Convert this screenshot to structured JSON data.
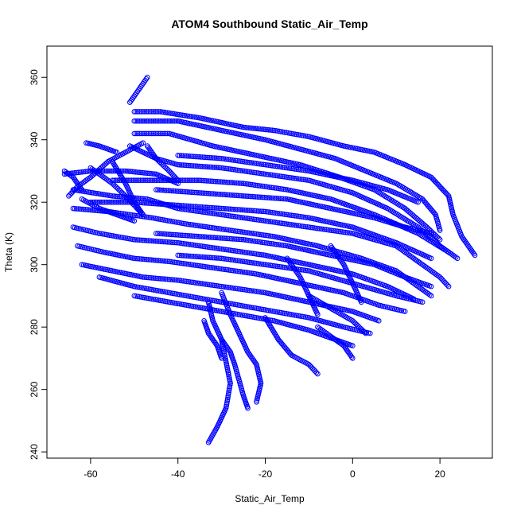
{
  "chart_data": {
    "type": "scatter",
    "title": "ATOM4 Southbound Static_Air_Temp",
    "xlabel": "Static_Air_Temp",
    "ylabel": "Theta (K)",
    "xlim": [
      -70,
      32
    ],
    "ylim": [
      238,
      370
    ],
    "xticks": [
      -60,
      -40,
      -20,
      0,
      20
    ],
    "yticks": [
      240,
      260,
      280,
      300,
      320,
      340,
      360
    ],
    "color": "#0000ff",
    "marker": "open-circle",
    "grid": false,
    "series": [
      {
        "segments": [
          [
            [
              -47,
              360
            ],
            [
              -48,
              358
            ],
            [
              -49,
              356
            ],
            [
              -50,
              354
            ],
            [
              -51,
              352
            ]
          ],
          [
            [
              -50,
              349
            ],
            [
              -44,
              349
            ],
            [
              -35,
              347
            ],
            [
              -25,
              344
            ],
            [
              -18,
              343
            ],
            [
              -10,
              341
            ],
            [
              -2,
              338
            ],
            [
              5,
              336
            ],
            [
              12,
              332
            ],
            [
              18,
              328
            ],
            [
              22,
              322
            ],
            [
              23,
              316
            ],
            [
              25,
              309
            ],
            [
              28,
              303
            ]
          ],
          [
            [
              -50,
              346
            ],
            [
              -40,
              346
            ],
            [
              -30,
              343
            ],
            [
              -20,
              340
            ],
            [
              -12,
              337
            ],
            [
              -4,
              334
            ],
            [
              3,
              330
            ],
            [
              10,
              326
            ],
            [
              16,
              321
            ],
            [
              19,
              316
            ],
            [
              20,
              311
            ]
          ],
          [
            [
              -50,
              342
            ],
            [
              -42,
              342
            ],
            [
              -32,
              338
            ],
            [
              -22,
              335
            ],
            [
              -12,
              332
            ],
            [
              -3,
              328
            ],
            [
              5,
              324
            ],
            [
              12,
              318
            ],
            [
              17,
              312
            ],
            [
              20,
              308
            ]
          ],
          [
            [
              -51,
              338
            ],
            [
              -45,
              334
            ],
            [
              -40,
              332
            ],
            [
              -30,
              331
            ],
            [
              -20,
              329
            ],
            [
              -10,
              327
            ],
            [
              0,
              323
            ],
            [
              8,
              318
            ],
            [
              15,
              312
            ],
            [
              20,
              306
            ],
            [
              24,
              302
            ]
          ],
          [
            [
              -66,
              329
            ],
            [
              -60,
              330
            ],
            [
              -52,
              330
            ],
            [
              -45,
              329
            ],
            [
              -40,
              326
            ]
          ],
          [
            [
              -64,
              324
            ],
            [
              -55,
              322
            ],
            [
              -47,
              321
            ],
            [
              -40,
              318
            ],
            [
              -30,
              316
            ],
            [
              -20,
              314
            ],
            [
              -10,
              312
            ],
            [
              0,
              310
            ],
            [
              10,
              306
            ],
            [
              16,
              300
            ],
            [
              20,
              296
            ],
            [
              22,
              293
            ]
          ],
          [
            [
              -64,
              318
            ],
            [
              -56,
              317
            ],
            [
              -46,
              315
            ],
            [
              -38,
              313
            ],
            [
              -28,
              311
            ],
            [
              -18,
              309
            ],
            [
              -8,
              306
            ],
            [
              2,
              302
            ],
            [
              10,
              298
            ],
            [
              15,
              293
            ],
            [
              18,
              290
            ]
          ],
          [
            [
              -64,
              312
            ],
            [
              -58,
              310
            ],
            [
              -50,
              308
            ],
            [
              -40,
              307
            ],
            [
              -30,
              305
            ],
            [
              -20,
              303
            ],
            [
              -10,
              300
            ],
            [
              0,
              297
            ],
            [
              8,
              293
            ],
            [
              14,
              289
            ]
          ],
          [
            [
              -63,
              306
            ],
            [
              -57,
              304
            ],
            [
              -50,
              302
            ],
            [
              -42,
              301
            ],
            [
              -32,
              299
            ],
            [
              -22,
              297
            ],
            [
              -12,
              294
            ],
            [
              -2,
              291
            ],
            [
              6,
              287
            ],
            [
              12,
              285
            ]
          ],
          [
            [
              -62,
              300
            ],
            [
              -55,
              298
            ],
            [
              -48,
              296
            ],
            [
              -40,
              295
            ],
            [
              -30,
              293
            ],
            [
              -20,
              291
            ],
            [
              -10,
              288
            ],
            [
              0,
              285
            ],
            [
              6,
              282
            ]
          ],
          [
            [
              -58,
              296
            ],
            [
              -50,
              293
            ],
            [
              -42,
              291
            ],
            [
              -34,
              289
            ],
            [
              -26,
              287
            ],
            [
              -18,
              285
            ],
            [
              -10,
              283
            ],
            [
              -2,
              280
            ],
            [
              4,
              278
            ]
          ],
          [
            [
              -50,
              290
            ],
            [
              -42,
              288
            ],
            [
              -34,
              286
            ],
            [
              -26,
              284
            ],
            [
              -18,
              282
            ],
            [
              -10,
              279
            ],
            [
              -4,
              276
            ],
            [
              0,
              274
            ]
          ],
          [
            [
              -30,
              291
            ],
            [
              -28,
              284
            ],
            [
              -26,
              278
            ],
            [
              -24,
              272
            ],
            [
              -22,
              268
            ],
            [
              -21,
              262
            ],
            [
              -22,
              256
            ]
          ],
          [
            [
              -33,
              288
            ],
            [
              -32,
              282
            ],
            [
              -30,
              276
            ],
            [
              -28,
              272
            ],
            [
              -27,
              268
            ],
            [
              -26,
              263
            ],
            [
              -25,
              258
            ],
            [
              -24,
              254
            ]
          ],
          [
            [
              -34,
              282
            ],
            [
              -33,
              278
            ],
            [
              -31,
              274
            ],
            [
              -30,
              270
            ]
          ],
          [
            [
              -30,
              276
            ],
            [
              -28,
              262
            ],
            [
              -29,
              254
            ],
            [
              -31,
              248
            ],
            [
              -33,
              243
            ]
          ],
          [
            [
              -20,
              283
            ],
            [
              -17,
              276
            ],
            [
              -14,
              271
            ],
            [
              -10,
              268
            ],
            [
              -8,
              265
            ]
          ],
          [
            [
              -60,
              331
            ],
            [
              -55,
              326
            ],
            [
              -52,
              322
            ],
            [
              -50,
              319
            ],
            [
              -48,
              316
            ]
          ],
          [
            [
              -55,
              333
            ],
            [
              -52,
              326
            ],
            [
              -50,
              320
            ],
            [
              -48,
              316
            ]
          ],
          [
            [
              -47,
              338
            ],
            [
              -45,
              334
            ],
            [
              -42,
              330
            ],
            [
              -40,
              327
            ]
          ],
          [
            [
              -48,
              339
            ],
            [
              -52,
              336
            ],
            [
              -56,
              333
            ],
            [
              -60,
              328
            ],
            [
              -63,
              325
            ],
            [
              -65,
              322
            ]
          ],
          [
            [
              -61,
              339
            ],
            [
              -58,
              338
            ],
            [
              -54,
              336
            ]
          ],
          [
            [
              -62,
              321
            ],
            [
              -58,
              318
            ],
            [
              -54,
              316
            ],
            [
              -50,
              314
            ]
          ],
          [
            [
              -66,
              330
            ],
            [
              -64,
              328
            ],
            [
              -62,
              324
            ]
          ],
          [
            [
              -55,
              327
            ],
            [
              -45,
              327
            ],
            [
              -35,
              327
            ],
            [
              -25,
              326
            ],
            [
              -15,
              324
            ],
            [
              -5,
              321
            ],
            [
              5,
              316
            ],
            [
              15,
              310
            ],
            [
              22,
              304
            ]
          ],
          [
            [
              -60,
              320
            ],
            [
              -50,
              320
            ],
            [
              -40,
              319
            ],
            [
              -30,
              318
            ],
            [
              -20,
              317
            ],
            [
              -10,
              315
            ],
            [
              0,
              312
            ],
            [
              10,
              307
            ],
            [
              18,
              302
            ]
          ],
          [
            [
              -45,
              310
            ],
            [
              -35,
              309
            ],
            [
              -25,
              308
            ],
            [
              -15,
              306
            ],
            [
              -5,
              303
            ],
            [
              5,
              300
            ],
            [
              12,
              296
            ],
            [
              18,
              293
            ]
          ],
          [
            [
              -40,
              303
            ],
            [
              -30,
              302
            ],
            [
              -20,
              300
            ],
            [
              -10,
              298
            ],
            [
              0,
              294
            ],
            [
              10,
              290
            ],
            [
              16,
              288
            ]
          ],
          [
            [
              -45,
              324
            ],
            [
              -35,
              323
            ],
            [
              -25,
              322
            ],
            [
              -15,
              321
            ],
            [
              -5,
              318
            ],
            [
              5,
              315
            ],
            [
              12,
              312
            ],
            [
              18,
              310
            ]
          ],
          [
            [
              -40,
              335
            ],
            [
              -30,
              334
            ],
            [
              -20,
              332
            ],
            [
              -10,
              330
            ],
            [
              0,
              327
            ],
            [
              8,
              324
            ],
            [
              15,
              320
            ]
          ],
          [
            [
              -10,
              290
            ],
            [
              -5,
              286
            ],
            [
              0,
              282
            ],
            [
              3,
              278
            ]
          ],
          [
            [
              -8,
              280
            ],
            [
              -5,
              277
            ],
            [
              -2,
              274
            ],
            [
              0,
              270
            ]
          ],
          [
            [
              -15,
              302
            ],
            [
              -12,
              296
            ],
            [
              -10,
              290
            ],
            [
              -8,
              284
            ]
          ],
          [
            [
              -5,
              306
            ],
            [
              -2,
              300
            ],
            [
              0,
              294
            ],
            [
              2,
              288
            ]
          ]
        ]
      }
    ]
  }
}
